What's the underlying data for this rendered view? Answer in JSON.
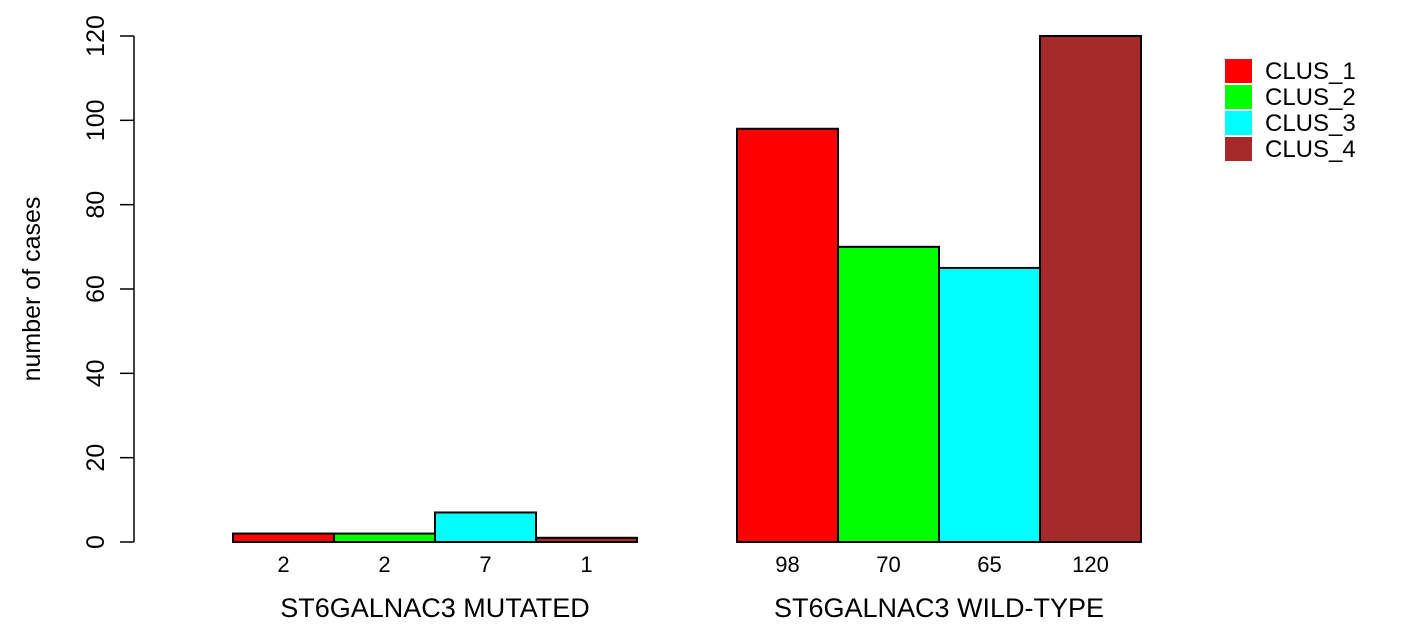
{
  "chart_data": {
    "type": "bar",
    "ylabel": "number of cases",
    "ylim": [
      0,
      120
    ],
    "y_ticks": [
      0,
      20,
      40,
      60,
      80,
      100,
      120
    ],
    "groups": [
      {
        "label": "ST6GALNAC3 MUTATED",
        "values": [
          2,
          2,
          7,
          1
        ]
      },
      {
        "label": "ST6GALNAC3 WILD-TYPE",
        "values": [
          98,
          70,
          65,
          120
        ]
      }
    ],
    "series": [
      {
        "name": "CLUS_1",
        "color": "#ff0000"
      },
      {
        "name": "CLUS_2",
        "color": "#00ff00"
      },
      {
        "name": "CLUS_3",
        "color": "#00ffff"
      },
      {
        "name": "CLUS_4",
        "color": "#a52a2a"
      }
    ],
    "legend_position": "top-right",
    "grid": false
  }
}
